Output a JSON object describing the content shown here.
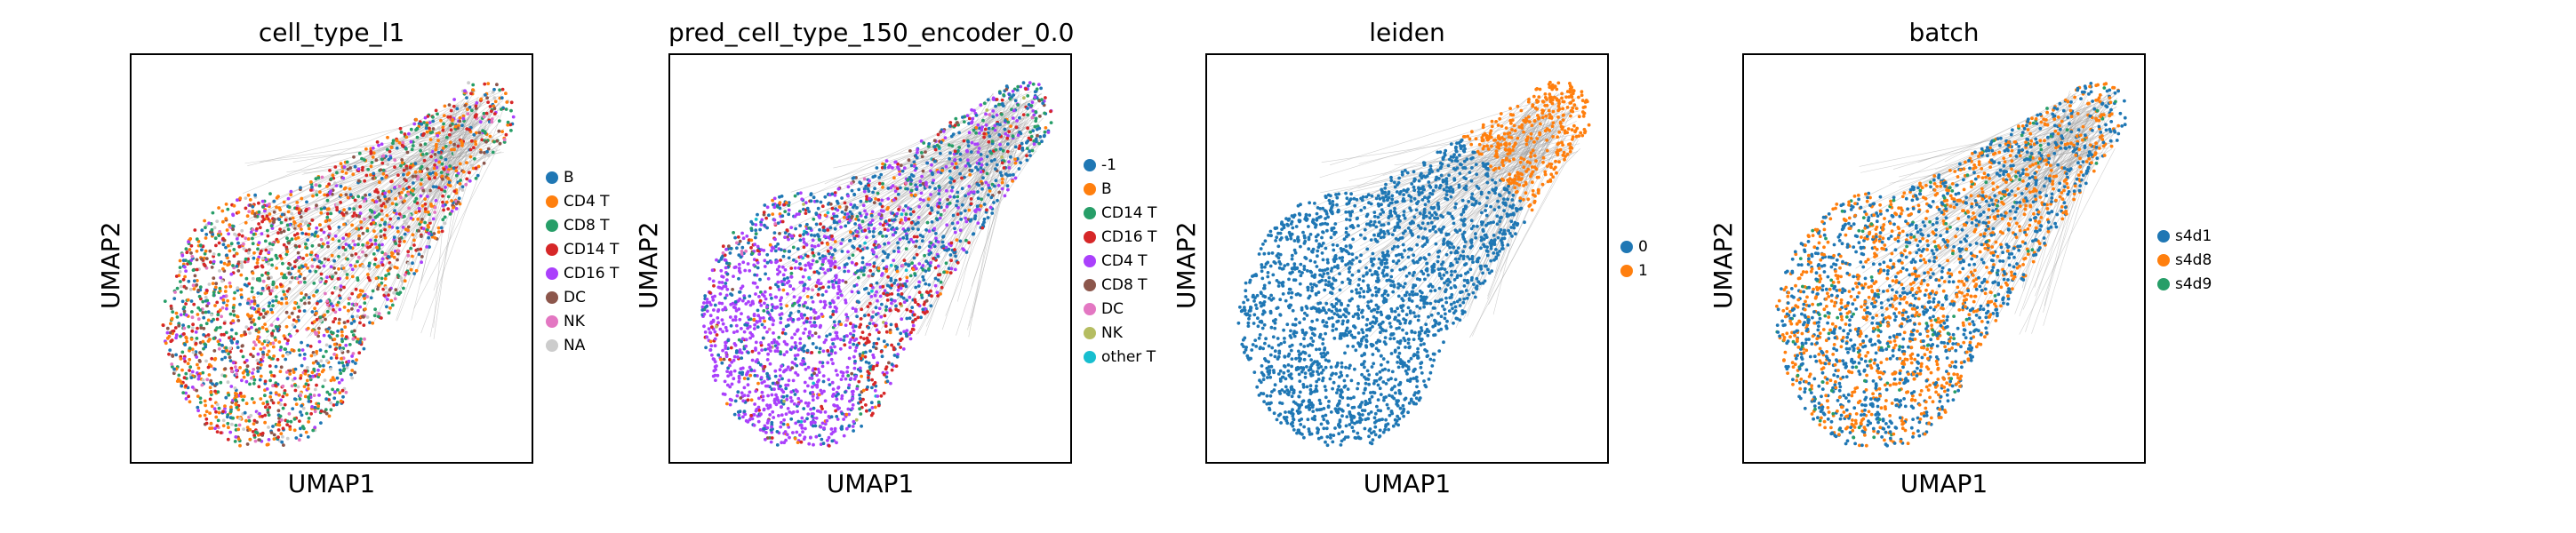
{
  "chart_data": [
    {
      "type": "scatter",
      "title": "cell_type_l1",
      "xlabel": "UMAP1",
      "ylabel": "UMAP2",
      "legend_position": "right",
      "categories": [
        "B",
        "CD4 T",
        "CD8 T",
        "CD14 T",
        "CD16 T",
        "DC",
        "NK",
        "NA"
      ],
      "colors": [
        "#1f77b4",
        "#ff7f0e",
        "#279e68",
        "#d62728",
        "#aa40fc",
        "#8c564b",
        "#e377c2",
        "#cccccc"
      ],
      "weights": [
        0.1,
        0.24,
        0.18,
        0.16,
        0.08,
        0.1,
        0.06,
        0.08
      ],
      "grid": false
    },
    {
      "type": "scatter",
      "title": "pred_cell_type_150_encoder_0.0",
      "xlabel": "UMAP1",
      "ylabel": "UMAP2",
      "legend_position": "right",
      "categories": [
        "-1",
        "B",
        "CD14 T",
        "CD16 T",
        "CD4 T",
        "CD8 T",
        "DC",
        "NK",
        "other T"
      ],
      "colors": [
        "#1f77b4",
        "#ff7f0e",
        "#279e68",
        "#d62728",
        "#aa40fc",
        "#8c564b",
        "#e377c2",
        "#b5bd61",
        "#17becf"
      ],
      "weights": [
        0.45,
        0.04,
        0.05,
        0.12,
        0.26,
        0.04,
        0.02,
        0.01,
        0.01
      ],
      "grid": false
    },
    {
      "type": "scatter",
      "title": "leiden",
      "xlabel": "UMAP1",
      "ylabel": "UMAP2",
      "legend_position": "right",
      "categories": [
        "0",
        "1"
      ],
      "colors": [
        "#1f77b4",
        "#ff7f0e"
      ],
      "weights": [
        0.85,
        0.15
      ],
      "grid": false
    },
    {
      "type": "scatter",
      "title": "batch",
      "xlabel": "UMAP1",
      "ylabel": "UMAP2",
      "legend_position": "right",
      "categories": [
        "s4d1",
        "s4d8",
        "s4d9"
      ],
      "colors": [
        "#1f77b4",
        "#ff7f0e",
        "#279e68"
      ],
      "weights": [
        0.52,
        0.43,
        0.05
      ],
      "grid": false
    }
  ]
}
